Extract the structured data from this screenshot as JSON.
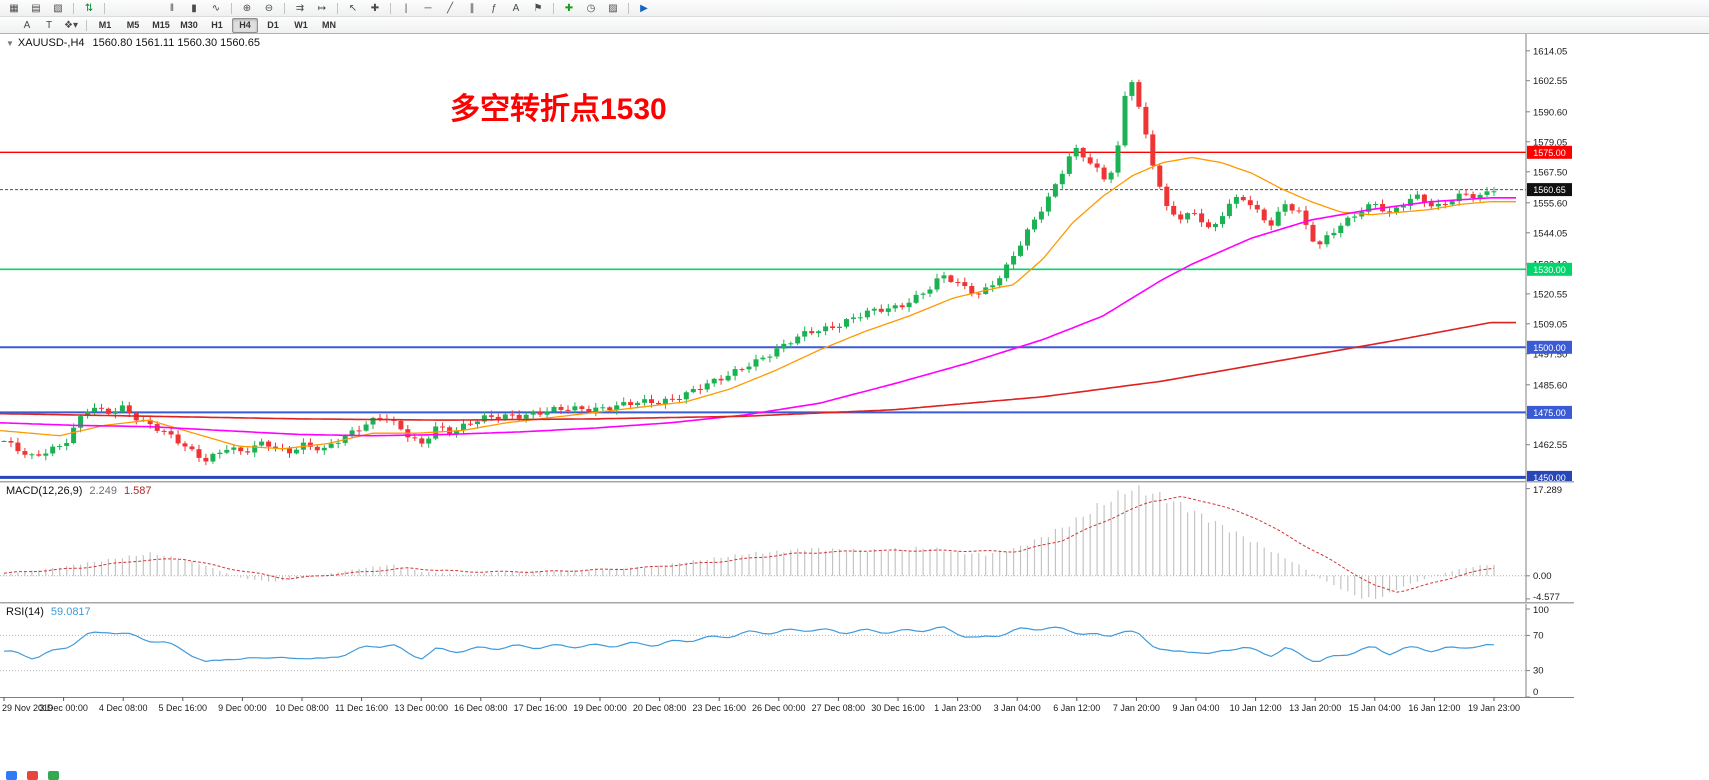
{
  "colors": {
    "up": "#1cb153",
    "down": "#ef3434",
    "ma_fast": "#ff9900",
    "ma_mid": "#ff00ff",
    "ma_slow": "#dd2222",
    "level_red": "#ff0000",
    "level_green": "#00d66b",
    "level_blue": "#3b5bd6",
    "level_blue_dark": "#2746b8",
    "bid_line": "#4d4d4d",
    "macd_hist": "#c4c4c4",
    "macd_signal": "#d33434",
    "rsi": "#3f9bdc",
    "annotation": "#ff0000"
  },
  "toolbar": {
    "row1_groups": [
      {
        "icons": [
          {
            "name": "new-chart-icon",
            "glyph": "▦"
          },
          {
            "name": "chart-profiles-icon",
            "glyph": "▤"
          },
          {
            "name": "chart-templates-icon",
            "glyph": "▧"
          }
        ],
        "gap_after": 4
      },
      {
        "icons": [
          {
            "name": "new-order-icon",
            "glyph": "⇅",
            "color": "#0a8a2a"
          }
        ],
        "gap_after": 56
      },
      {
        "icons": [
          {
            "name": "bar-chart-icon",
            "glyph": "‖"
          },
          {
            "name": "candlestick-chart-icon",
            "glyph": "▮"
          },
          {
            "name": "line-chart-icon",
            "glyph": "∿"
          }
        ],
        "gap_after": 4
      },
      {
        "icons": [
          {
            "name": "zoom-in-icon",
            "glyph": "⊕"
          },
          {
            "name": "zoom-out-icon",
            "glyph": "⊖"
          }
        ],
        "gap_after": 4
      },
      {
        "icons": [
          {
            "name": "auto-scroll-icon",
            "glyph": "⇉"
          },
          {
            "name": "chart-shift-icon",
            "glyph": "↦"
          }
        ],
        "gap_after": 4
      },
      {
        "icons": [
          {
            "name": "cursor-icon",
            "glyph": "↖"
          },
          {
            "name": "crosshair-icon",
            "glyph": "✚"
          }
        ],
        "gap_after": 4
      },
      {
        "icons": [
          {
            "name": "vertical-line-icon",
            "glyph": "|"
          },
          {
            "name": "horizontal-line-icon",
            "glyph": "─"
          },
          {
            "name": "trendline-icon",
            "glyph": "╱"
          },
          {
            "name": "equidistant-channel-icon",
            "glyph": "∥"
          },
          {
            "name": "fibonacci-icon",
            "glyph": "ƒ"
          },
          {
            "name": "text-label-icon",
            "glyph": "A"
          },
          {
            "name": "arrows-icon",
            "glyph": "⚑"
          }
        ],
        "gap_after": 4
      },
      {
        "icons": [
          {
            "name": "indicators-icon",
            "glyph": "✚",
            "color": "#1d9b1d"
          },
          {
            "name": "periods-icon",
            "glyph": "◷"
          },
          {
            "name": "templates-icon",
            "glyph": "▨"
          }
        ],
        "gap_after": 4
      },
      {
        "icons": [
          {
            "name": "autotrading-icon",
            "glyph": "▶",
            "color": "#1565c0"
          }
        ],
        "gap_after": 0
      }
    ],
    "row2_tools": [
      {
        "name": "font-tool",
        "label": "A"
      },
      {
        "name": "text-tool",
        "label": "T"
      },
      {
        "name": "shapes-tool",
        "label": "❖▾"
      }
    ],
    "timeframes": [
      "M1",
      "M5",
      "M15",
      "M30",
      "H1",
      "H4",
      "D1",
      "W1",
      "MN"
    ],
    "active_timeframe": "H4"
  },
  "chart": {
    "collapse_icon": "▼",
    "symbol_title": "XAUUSD-,H4",
    "ohlc_text": "1560.80 1561.11 1560.30 1560.65",
    "annotation": "多空转折点1530",
    "bid": {
      "price": 1560.65
    },
    "levels": [
      {
        "price": 1575.0,
        "color_key": "level_red",
        "width": 1.4
      },
      {
        "price": 1530.0,
        "color_key": "level_green",
        "width": 1.6
      },
      {
        "price": 1500.0,
        "color_key": "level_blue",
        "width": 2
      },
      {
        "price": 1475.0,
        "color_key": "level_blue",
        "width": 2
      },
      {
        "price": 1450.0,
        "color_key": "level_blue_dark",
        "width": 3
      }
    ]
  },
  "macd": {
    "label": "MACD(12,26,9)",
    "value_main": "2.249",
    "value_signal": "1.587",
    "scale": [
      "17.289",
      "0.00",
      "-4.577"
    ]
  },
  "rsi": {
    "label": "RSI(14)",
    "value": "59.0817",
    "scale": [
      "100",
      "70",
      "30",
      "0"
    ]
  },
  "chart_data": {
    "type": "candlestick",
    "symbol": "XAUUSD",
    "timeframe": "H4",
    "last_open": 1560.8,
    "last_high": 1561.11,
    "last_low": 1560.3,
    "last_close": 1560.65,
    "y_range": [
      1448.6,
      1620.5
    ],
    "n_candles": 215,
    "y_axis_ticks": [
      1614.05,
      1602.55,
      1590.6,
      1579.05,
      1567.5,
      1555.6,
      1544.05,
      1532.1,
      1520.55,
      1509.05,
      1497.5,
      1485.6,
      1474.05,
      1462.55
    ],
    "x_axis_labels": [
      "29 Nov 2019",
      "3 Dec 00:00",
      "4 Dec 08:00",
      "5 Dec 16:00",
      "9 Dec 00:00",
      "10 Dec 08:00",
      "11 Dec 16:00",
      "13 Dec 00:00",
      "16 Dec 08:00",
      "17 Dec 16:00",
      "19 Dec 00:00",
      "20 Dec 08:00",
      "23 Dec 16:00",
      "26 Dec 00:00",
      "27 Dec 08:00",
      "30 Dec 16:00",
      "1 Jan 23:00",
      "3 Jan 04:00",
      "6 Jan 12:00",
      "7 Jan 20:00",
      "9 Jan 04:00",
      "10 Jan 12:00",
      "13 Jan 20:00",
      "15 Jan 04:00",
      "16 Jan 12:00",
      "19 Jan 23:00"
    ],
    "horizontal_lines": [
      1575.0,
      1530.0,
      1500.0,
      1475.0,
      1450.0
    ],
    "price_path": [
      [
        0,
        1464
      ],
      [
        0.012,
        1459
      ],
      [
        0.02,
        1457
      ],
      [
        0.03,
        1461
      ],
      [
        0.04,
        1463
      ],
      [
        0.05,
        1472
      ],
      [
        0.058,
        1477
      ],
      [
        0.068,
        1474
      ],
      [
        0.08,
        1477
      ],
      [
        0.09,
        1473
      ],
      [
        0.1,
        1470
      ],
      [
        0.115,
        1464
      ],
      [
        0.125,
        1460
      ],
      [
        0.135,
        1457
      ],
      [
        0.15,
        1462
      ],
      [
        0.16,
        1459
      ],
      [
        0.175,
        1463
      ],
      [
        0.19,
        1460
      ],
      [
        0.2,
        1463
      ],
      [
        0.215,
        1460
      ],
      [
        0.23,
        1466
      ],
      [
        0.245,
        1472
      ],
      [
        0.255,
        1474
      ],
      [
        0.27,
        1466
      ],
      [
        0.28,
        1462
      ],
      [
        0.29,
        1470
      ],
      [
        0.3,
        1468
      ],
      [
        0.32,
        1472
      ],
      [
        0.34,
        1474
      ],
      [
        0.36,
        1475
      ],
      [
        0.38,
        1476
      ],
      [
        0.4,
        1477
      ],
      [
        0.42,
        1478
      ],
      [
        0.44,
        1479
      ],
      [
        0.46,
        1483
      ],
      [
        0.48,
        1487
      ],
      [
        0.5,
        1494
      ],
      [
        0.52,
        1499
      ],
      [
        0.54,
        1506
      ],
      [
        0.56,
        1509
      ],
      [
        0.58,
        1513
      ],
      [
        0.6,
        1516
      ],
      [
        0.62,
        1522
      ],
      [
        0.63,
        1527
      ],
      [
        0.645,
        1523
      ],
      [
        0.655,
        1521
      ],
      [
        0.67,
        1528
      ],
      [
        0.68,
        1537
      ],
      [
        0.695,
        1552
      ],
      [
        0.705,
        1562
      ],
      [
        0.715,
        1574
      ],
      [
        0.72,
        1576
      ],
      [
        0.73,
        1570
      ],
      [
        0.74,
        1563
      ],
      [
        0.747,
        1574
      ],
      [
        0.752,
        1596
      ],
      [
        0.756,
        1606
      ],
      [
        0.762,
        1592
      ],
      [
        0.77,
        1573
      ],
      [
        0.78,
        1553
      ],
      [
        0.79,
        1549
      ],
      [
        0.8,
        1552
      ],
      [
        0.81,
        1545
      ],
      [
        0.82,
        1554
      ],
      [
        0.83,
        1558
      ],
      [
        0.84,
        1552
      ],
      [
        0.85,
        1547
      ],
      [
        0.86,
        1556
      ],
      [
        0.87,
        1552
      ],
      [
        0.876,
        1544
      ],
      [
        0.882,
        1538
      ],
      [
        0.89,
        1543
      ],
      [
        0.9,
        1548
      ],
      [
        0.91,
        1553
      ],
      [
        0.92,
        1556
      ],
      [
        0.93,
        1551
      ],
      [
        0.94,
        1555
      ],
      [
        0.95,
        1558
      ],
      [
        0.96,
        1554
      ],
      [
        0.97,
        1557
      ],
      [
        0.98,
        1559
      ],
      [
        0.99,
        1557
      ],
      [
        1,
        1560.65
      ]
    ],
    "ma_fast_path": [
      [
        0,
        1468
      ],
      [
        0.04,
        1466
      ],
      [
        0.07,
        1470
      ],
      [
        0.1,
        1472
      ],
      [
        0.13,
        1467
      ],
      [
        0.16,
        1462
      ],
      [
        0.19,
        1461
      ],
      [
        0.22,
        1463
      ],
      [
        0.25,
        1467
      ],
      [
        0.28,
        1467
      ],
      [
        0.31,
        1468
      ],
      [
        0.34,
        1471
      ],
      [
        0.37,
        1473
      ],
      [
        0.4,
        1475
      ],
      [
        0.43,
        1477
      ],
      [
        0.46,
        1479
      ],
      [
        0.49,
        1484
      ],
      [
        0.52,
        1491
      ],
      [
        0.55,
        1499
      ],
      [
        0.58,
        1506
      ],
      [
        0.61,
        1512
      ],
      [
        0.64,
        1519
      ],
      [
        0.67,
        1523
      ],
      [
        0.68,
        1524
      ],
      [
        0.7,
        1534
      ],
      [
        0.72,
        1548
      ],
      [
        0.74,
        1558
      ],
      [
        0.76,
        1566
      ],
      [
        0.78,
        1571
      ],
      [
        0.8,
        1573
      ],
      [
        0.82,
        1571
      ],
      [
        0.84,
        1567
      ],
      [
        0.86,
        1561
      ],
      [
        0.88,
        1556
      ],
      [
        0.9,
        1552
      ],
      [
        0.92,
        1551
      ],
      [
        0.94,
        1552
      ],
      [
        0.96,
        1553
      ],
      [
        0.98,
        1555
      ],
      [
        1,
        1556
      ]
    ],
    "ma_mid_path": [
      [
        0,
        1471
      ],
      [
        0.05,
        1470
      ],
      [
        0.1,
        1469.5
      ],
      [
        0.15,
        1468
      ],
      [
        0.2,
        1466.5
      ],
      [
        0.25,
        1466
      ],
      [
        0.3,
        1466.5
      ],
      [
        0.35,
        1467.5
      ],
      [
        0.4,
        1469
      ],
      [
        0.45,
        1471
      ],
      [
        0.5,
        1474
      ],
      [
        0.55,
        1478.5
      ],
      [
        0.6,
        1486
      ],
      [
        0.65,
        1494
      ],
      [
        0.7,
        1503
      ],
      [
        0.74,
        1512
      ],
      [
        0.78,
        1526
      ],
      [
        0.8,
        1532
      ],
      [
        0.84,
        1542
      ],
      [
        0.88,
        1549
      ],
      [
        0.92,
        1553
      ],
      [
        0.96,
        1556
      ],
      [
        1,
        1557.5
      ]
    ],
    "ma_slow_path": [
      [
        0,
        1474.5
      ],
      [
        0.1,
        1473.5
      ],
      [
        0.2,
        1472.5
      ],
      [
        0.3,
        1472
      ],
      [
        0.4,
        1472.5
      ],
      [
        0.5,
        1473.5
      ],
      [
        0.6,
        1476
      ],
      [
        0.7,
        1481
      ],
      [
        0.78,
        1487
      ],
      [
        0.86,
        1495
      ],
      [
        0.93,
        1502
      ],
      [
        1,
        1509.5
      ]
    ],
    "macd_range": [
      -5.2,
      18.4
    ],
    "macd_path": [
      [
        0,
        0.3
      ],
      [
        0.04,
        1.8
      ],
      [
        0.07,
        3.2
      ],
      [
        0.1,
        4.5
      ],
      [
        0.13,
        2.5
      ],
      [
        0.16,
        -0.5
      ],
      [
        0.18,
        -1.2
      ],
      [
        0.2,
        -0.5
      ],
      [
        0.24,
        1.5
      ],
      [
        0.26,
        2.2
      ],
      [
        0.28,
        0.8
      ],
      [
        0.31,
        0.2
      ],
      [
        0.34,
        0.8
      ],
      [
        0.37,
        1
      ],
      [
        0.4,
        1.2
      ],
      [
        0.44,
        2
      ],
      [
        0.46,
        2.8
      ],
      [
        0.48,
        3.6
      ],
      [
        0.5,
        4.4
      ],
      [
        0.52,
        4.8
      ],
      [
        0.54,
        5.4
      ],
      [
        0.56,
        5.2
      ],
      [
        0.58,
        5
      ],
      [
        0.6,
        5.2
      ],
      [
        0.62,
        5.6
      ],
      [
        0.64,
        4.6
      ],
      [
        0.66,
        4.2
      ],
      [
        0.68,
        5.5
      ],
      [
        0.7,
        8
      ],
      [
        0.72,
        11
      ],
      [
        0.73,
        13
      ],
      [
        0.745,
        15.5
      ],
      [
        0.755,
        17.3
      ],
      [
        0.77,
        16.5
      ],
      [
        0.79,
        14
      ],
      [
        0.81,
        11
      ],
      [
        0.83,
        8
      ],
      [
        0.85,
        5
      ],
      [
        0.87,
        2
      ],
      [
        0.88,
        0
      ],
      [
        0.89,
        -1.5
      ],
      [
        0.9,
        -3
      ],
      [
        0.91,
        -4.3
      ],
      [
        0.92,
        -4.6
      ],
      [
        0.93,
        -3.5
      ],
      [
        0.94,
        -2
      ],
      [
        0.95,
        -1
      ],
      [
        0.96,
        0
      ],
      [
        0.97,
        0.8
      ],
      [
        0.98,
        1.5
      ],
      [
        0.99,
        2
      ],
      [
        1,
        2.249
      ]
    ],
    "macd_signal_path": [
      [
        0,
        0.5
      ],
      [
        0.05,
        1.5
      ],
      [
        0.09,
        3
      ],
      [
        0.12,
        3.4
      ],
      [
        0.15,
        1.5
      ],
      [
        0.19,
        -0.6
      ],
      [
        0.22,
        0.2
      ],
      [
        0.27,
        1.5
      ],
      [
        0.31,
        0.8
      ],
      [
        0.36,
        0.8
      ],
      [
        0.42,
        1.4
      ],
      [
        0.48,
        2.8
      ],
      [
        0.53,
        4.4
      ],
      [
        0.58,
        5
      ],
      [
        0.63,
        5
      ],
      [
        0.68,
        4.8
      ],
      [
        0.71,
        7
      ],
      [
        0.74,
        11
      ],
      [
        0.77,
        14.8
      ],
      [
        0.79,
        15.6
      ],
      [
        0.81,
        14.5
      ],
      [
        0.84,
        11.5
      ],
      [
        0.87,
        6.5
      ],
      [
        0.9,
        1.5
      ],
      [
        0.92,
        -2
      ],
      [
        0.935,
        -3.2
      ],
      [
        0.95,
        -2.2
      ],
      [
        0.97,
        -0.5
      ],
      [
        0.99,
        1
      ],
      [
        1,
        1.587
      ]
    ],
    "rsi_levels": [
      70,
      30
    ],
    "rsi_path": [
      [
        0,
        52
      ],
      [
        0.02,
        45
      ],
      [
        0.04,
        55
      ],
      [
        0.055,
        70
      ],
      [
        0.07,
        75
      ],
      [
        0.09,
        68
      ],
      [
        0.11,
        60
      ],
      [
        0.12,
        55
      ],
      [
        0.135,
        38
      ],
      [
        0.15,
        45
      ],
      [
        0.16,
        41
      ],
      [
        0.175,
        47
      ],
      [
        0.19,
        42
      ],
      [
        0.2,
        46
      ],
      [
        0.215,
        42
      ],
      [
        0.23,
        50
      ],
      [
        0.245,
        57
      ],
      [
        0.26,
        60
      ],
      [
        0.27,
        50
      ],
      [
        0.28,
        45
      ],
      [
        0.29,
        54
      ],
      [
        0.3,
        52
      ],
      [
        0.32,
        55
      ],
      [
        0.34,
        57
      ],
      [
        0.36,
        57
      ],
      [
        0.38,
        58
      ],
      [
        0.4,
        58
      ],
      [
        0.42,
        60
      ],
      [
        0.44,
        60
      ],
      [
        0.46,
        65
      ],
      [
        0.48,
        68
      ],
      [
        0.5,
        73
      ],
      [
        0.52,
        74
      ],
      [
        0.54,
        77
      ],
      [
        0.56,
        74
      ],
      [
        0.58,
        75
      ],
      [
        0.6,
        74
      ],
      [
        0.62,
        77
      ],
      [
        0.63,
        78
      ],
      [
        0.645,
        70
      ],
      [
        0.655,
        66
      ],
      [
        0.67,
        72
      ],
      [
        0.68,
        76
      ],
      [
        0.7,
        79
      ],
      [
        0.72,
        74
      ],
      [
        0.74,
        68
      ],
      [
        0.75,
        76
      ],
      [
        0.76,
        72
      ],
      [
        0.77,
        60
      ],
      [
        0.785,
        50
      ],
      [
        0.8,
        53
      ],
      [
        0.81,
        47
      ],
      [
        0.82,
        54
      ],
      [
        0.83,
        57
      ],
      [
        0.84,
        52
      ],
      [
        0.85,
        48
      ],
      [
        0.86,
        55
      ],
      [
        0.875,
        45
      ],
      [
        0.882,
        40
      ],
      [
        0.89,
        44
      ],
      [
        0.9,
        49
      ],
      [
        0.91,
        53
      ],
      [
        0.92,
        56
      ],
      [
        0.93,
        50
      ],
      [
        0.94,
        54
      ],
      [
        0.95,
        57
      ],
      [
        0.96,
        52
      ],
      [
        0.97,
        55
      ],
      [
        0.98,
        58
      ],
      [
        0.99,
        56
      ],
      [
        1,
        59.08
      ]
    ]
  }
}
